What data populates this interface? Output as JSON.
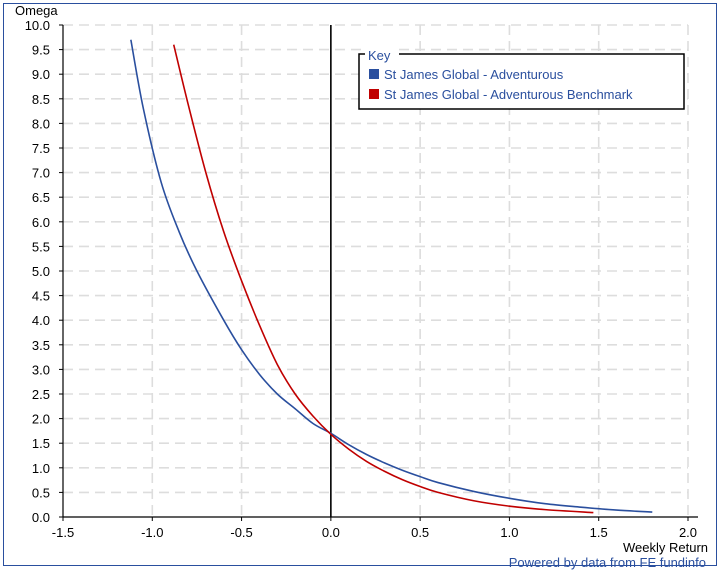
{
  "chart_data": {
    "type": "line",
    "ylabel": "Omega",
    "xlabel": "Weekly Return",
    "xlim": [
      -1.5,
      2.0
    ],
    "ylim": [
      0.0,
      10.0
    ],
    "x_ticks": [
      "-1.5",
      "-1.0",
      "-0.5",
      "0.0",
      "0.5",
      "1.0",
      "1.5",
      "2.0"
    ],
    "y_ticks": [
      "0.0",
      "0.5",
      "1.0",
      "1.5",
      "2.0",
      "2.5",
      "3.0",
      "3.5",
      "4.0",
      "4.5",
      "5.0",
      "5.5",
      "6.0",
      "6.5",
      "7.0",
      "7.5",
      "8.0",
      "8.5",
      "9.0",
      "9.5",
      "10.0"
    ],
    "grid": true,
    "legend": {
      "title": "Key",
      "placement": "top-right"
    },
    "series": [
      {
        "name": "St James Global - Adventurous",
        "color": "#2a4f9e",
        "x": [
          -1.12,
          -1.05,
          -0.95,
          -0.85,
          -0.75,
          -0.6,
          -0.5,
          -0.4,
          -0.3,
          -0.2,
          -0.1,
          0.0,
          0.1,
          0.2,
          0.3,
          0.4,
          0.5,
          0.6,
          0.8,
          1.0,
          1.2,
          1.4,
          1.6,
          1.8
        ],
        "y": [
          9.7,
          8.3,
          6.8,
          5.8,
          5.0,
          4.0,
          3.4,
          2.9,
          2.5,
          2.2,
          1.9,
          1.7,
          1.47,
          1.27,
          1.1,
          0.95,
          0.82,
          0.7,
          0.52,
          0.38,
          0.27,
          0.2,
          0.14,
          0.1
        ]
      },
      {
        "name": "St James Global - Adventurous Benchmark",
        "color": "#c00000",
        "x": [
          -0.88,
          -0.8,
          -0.7,
          -0.6,
          -0.5,
          -0.4,
          -0.3,
          -0.2,
          -0.1,
          0.0,
          0.1,
          0.2,
          0.3,
          0.4,
          0.5,
          0.6,
          0.8,
          1.0,
          1.2,
          1.47
        ],
        "y": [
          9.6,
          8.4,
          7.0,
          5.8,
          4.8,
          3.9,
          3.1,
          2.5,
          2.05,
          1.68,
          1.38,
          1.13,
          0.93,
          0.76,
          0.62,
          0.5,
          0.33,
          0.22,
          0.15,
          0.09
        ]
      }
    ]
  },
  "footer": {
    "credit": "Powered by data from FE fundinfo"
  }
}
